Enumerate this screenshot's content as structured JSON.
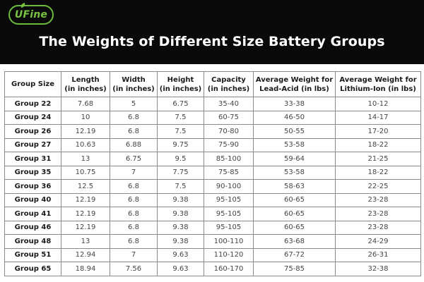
{
  "brand": "UFine",
  "title": "The Weights of Different Size Battery Groups",
  "table": {
    "headers": [
      [
        "Group Size"
      ],
      [
        "Length",
        "(in inches)"
      ],
      [
        "Width",
        "(in inches)"
      ],
      [
        "Height",
        "(in inches)"
      ],
      [
        "Capacity",
        "(in inches)"
      ],
      [
        "Average Weight for",
        "Lead-Acid (in lbs)"
      ],
      [
        "Average Weight for",
        "Lithium-Ion (in lbs)"
      ]
    ],
    "rows": [
      [
        "Group 22",
        "7.68",
        "5",
        "6.75",
        "35-40",
        "33-38",
        "10-12"
      ],
      [
        "Group 24",
        "10",
        "6.8",
        "7.5",
        "60-75",
        "46-50",
        "14-17"
      ],
      [
        "Group 26",
        "12.19",
        "6.8",
        "7.5",
        "70-80",
        "50-55",
        "17-20"
      ],
      [
        "Group 27",
        "10.63",
        "6.88",
        "9.75",
        "75-90",
        "53-58",
        "18-22"
      ],
      [
        "Group 31",
        "13",
        "6.75",
        "9.5",
        "85-100",
        "59-64",
        "21-25"
      ],
      [
        "Group 35",
        "10.75",
        "7",
        "7.75",
        "75-85",
        "53-58",
        "18-22"
      ],
      [
        "Group 36",
        "12.5",
        "6.8",
        "7.5",
        "90-100",
        "58-63",
        "22-25"
      ],
      [
        "Group 40",
        "12.19",
        "6.8",
        "9.38",
        "95-105",
        "60-65",
        "23-28"
      ],
      [
        "Group 41",
        "12.19",
        "6.8",
        "9.38",
        "95-105",
        "60-65",
        "23-28"
      ],
      [
        "Group 46",
        "12.19",
        "6.8",
        "9.38",
        "95-105",
        "60-65",
        "23-28"
      ],
      [
        "Group 48",
        "13",
        "6.8",
        "9.38",
        "100-110",
        "63-68",
        "24-29"
      ],
      [
        "Group 51",
        "12.94",
        "7",
        "9.63",
        "110-120",
        "67-72",
        "26-31"
      ],
      [
        "Group 65",
        "18.94",
        "7.56",
        "9.63",
        "160-170",
        "75-85",
        "32-38"
      ]
    ]
  },
  "colors": {
    "brand_green": "#78c442",
    "background": "#0a0a0a"
  }
}
